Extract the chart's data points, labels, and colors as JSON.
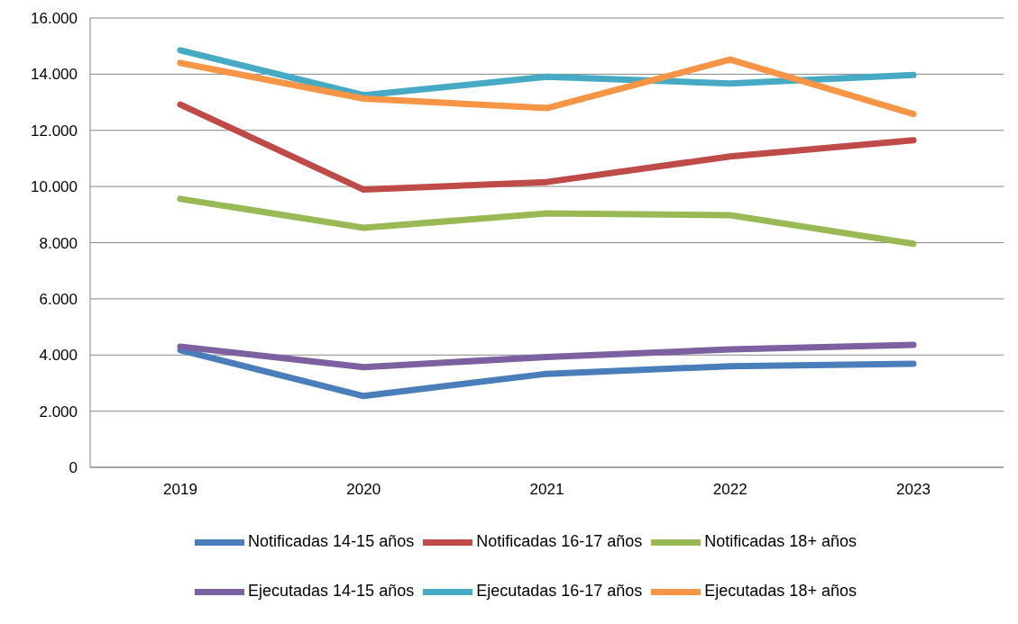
{
  "chart_data": {
    "type": "line",
    "categories": [
      "2019",
      "2020",
      "2021",
      "2022",
      "2023"
    ],
    "series": [
      {
        "name": "Notificadas 14-15 años",
        "color": "#4a7ebb",
        "values": [
          4170,
          2540,
          3330,
          3600,
          3690
        ]
      },
      {
        "name": "Notificadas 16-17 años",
        "color": "#be4b48",
        "values": [
          12920,
          9890,
          10160,
          11070,
          11650
        ]
      },
      {
        "name": "Notificadas 18+ años",
        "color": "#98b954",
        "values": [
          9560,
          8530,
          9040,
          8980,
          7960
        ]
      },
      {
        "name": "Ejecutadas 14-15 años",
        "color": "#7d60a0",
        "values": [
          4300,
          3570,
          3930,
          4200,
          4360
        ]
      },
      {
        "name": "Ejecutadas 16-17 años",
        "color": "#46aac5",
        "values": [
          14850,
          13250,
          13910,
          13670,
          13970
        ]
      },
      {
        "name": "Ejecutadas 18+ años",
        "color": "#f69546",
        "values": [
          14400,
          13130,
          12790,
          14520,
          12580
        ]
      }
    ],
    "ylim": [
      0,
      16000
    ],
    "yticks": [
      0,
      {
        "value": 2000,
        "label": "2.000"
      },
      {
        "value": 4000,
        "label": "4.000"
      },
      {
        "value": 6000,
        "label": "6.000"
      },
      {
        "value": 8000,
        "label": "8.000"
      },
      {
        "value": 10000,
        "label": "10.000"
      },
      {
        "value": 12000,
        "label": "12.000"
      },
      {
        "value": 14000,
        "label": "14.000"
      },
      {
        "value": 16000,
        "label": "16.000"
      }
    ],
    "grid": "y",
    "legend": "bottom",
    "marker": "none",
    "line_style": "solid"
  }
}
